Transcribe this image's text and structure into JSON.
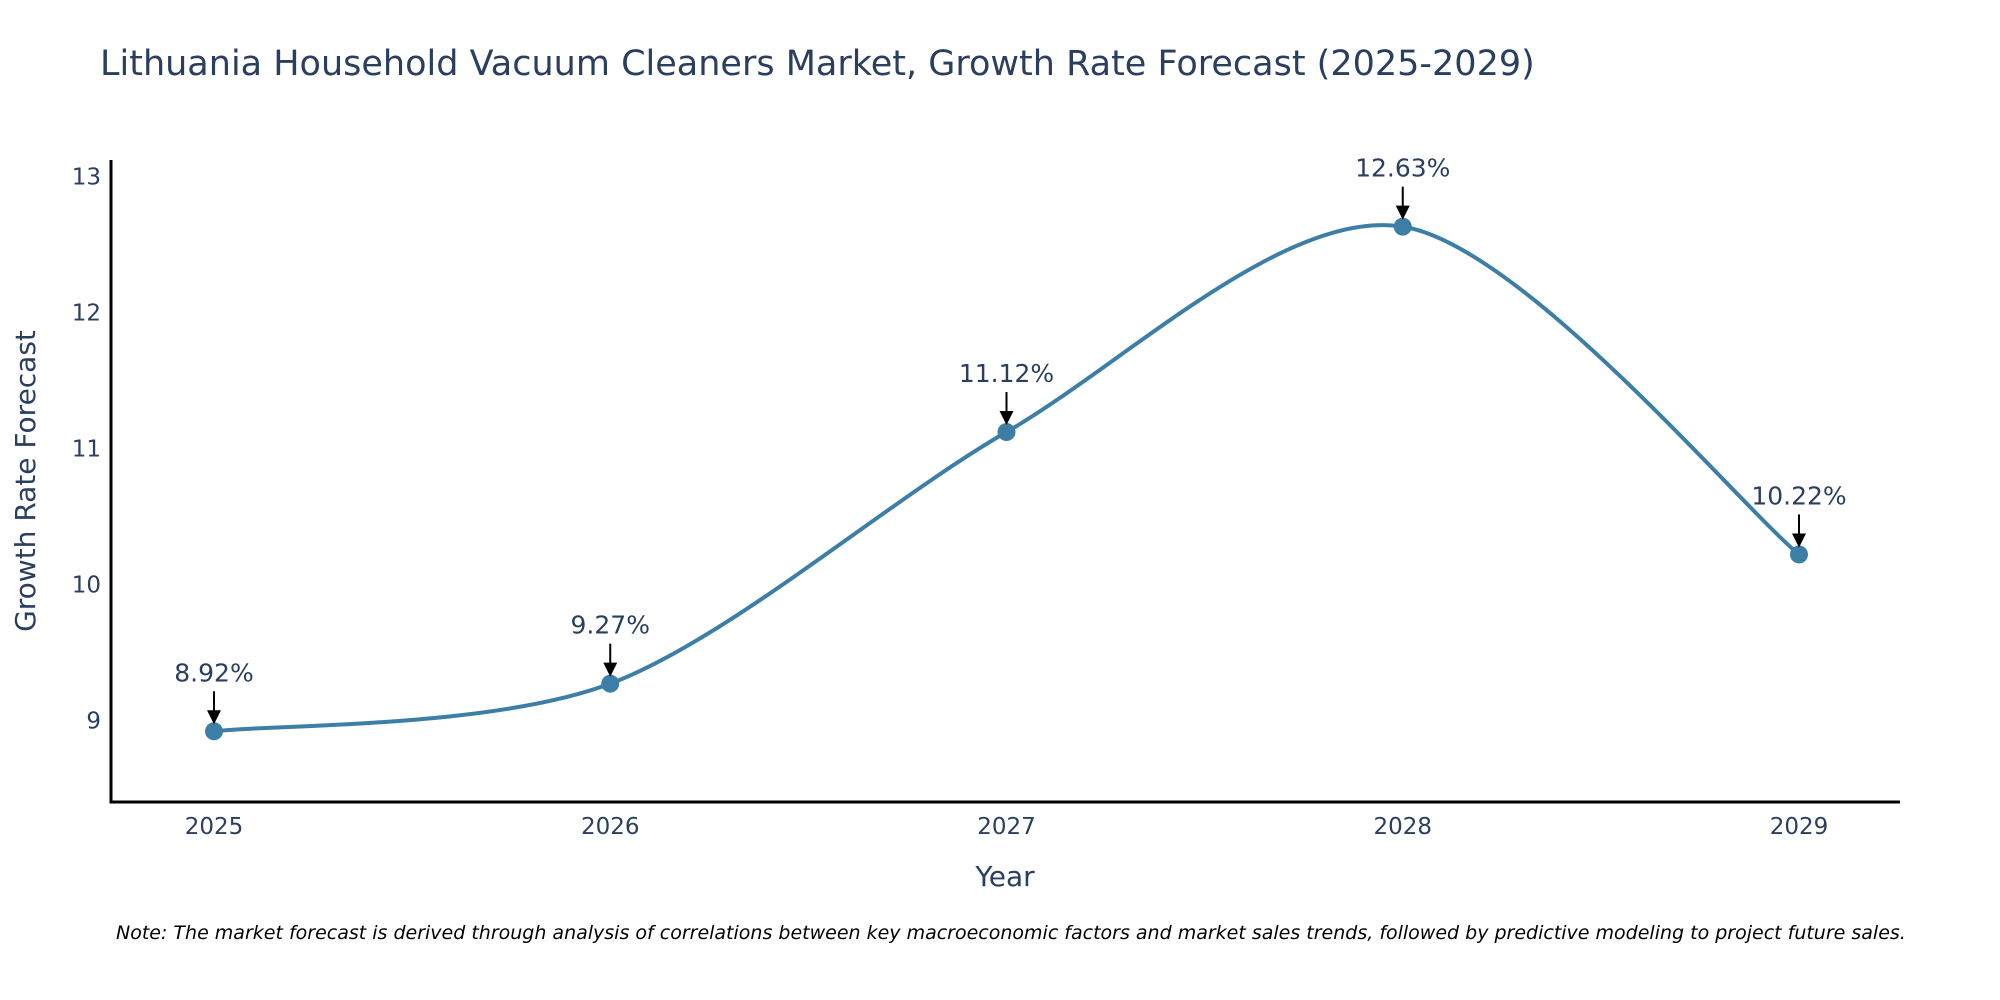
{
  "chart_data": {
    "type": "line",
    "title": "Lithuania Household Vacuum Cleaners Market, Growth Rate Forecast (2025-2029)",
    "xlabel": "Year",
    "ylabel": "Growth Rate Forecast",
    "x": [
      "2025",
      "2026",
      "2027",
      "2028",
      "2029"
    ],
    "series": [
      {
        "values": [
          8.92,
          9.27,
          11.12,
          12.63,
          10.22
        ]
      }
    ],
    "data_labels": [
      "8.92%",
      "9.27%",
      "11.12%",
      "12.63%",
      "10.22%"
    ],
    "y_ticks": [
      "9",
      "10",
      "11",
      "12",
      "13"
    ],
    "ylim": [
      8.4,
      13.12
    ],
    "line_shape": "spline",
    "grid": false,
    "legend": "none",
    "colors": {
      "line": "#3d7ea6",
      "marker": "#3d7ea6",
      "arrow": "#000000",
      "axis": "#000000"
    },
    "note": "Note: The market forecast is derived through analysis of correlations between key macroeconomic factors and market sales trends, followed by predictive modeling to project future sales."
  }
}
